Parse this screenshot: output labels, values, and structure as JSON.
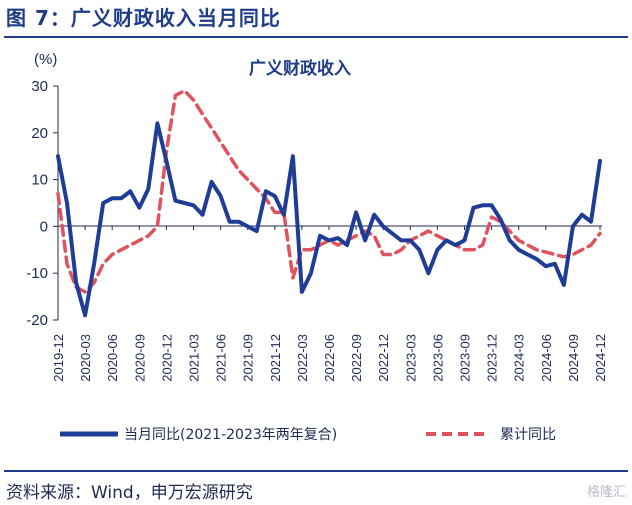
{
  "figure": {
    "title": "图 7：广义财政收入当月同比",
    "source": "资料来源：Wind，申万宏源研究",
    "watermark": "格隆汇"
  },
  "colors": {
    "series_monthly": "#1f3c96",
    "series_cumulative": "#e0525e",
    "text": "#1f2a55",
    "accent": "#1f3c88"
  },
  "chart_data": {
    "type": "line",
    "title": "广义财政收入",
    "unit_label": "(%)",
    "ylim": [
      -20,
      30
    ],
    "yticks": [
      -20,
      -10,
      0,
      10,
      20,
      30
    ],
    "xtick_labels": [
      "2019-12",
      "2020-03",
      "2020-06",
      "2020-09",
      "2020-12",
      "2021-03",
      "2021-06",
      "2021-09",
      "2021-12",
      "2022-03",
      "2022-06",
      "2022-09",
      "2022-12",
      "2023-03",
      "2023-06",
      "2023-09",
      "2023-12",
      "2024-03",
      "2024-06",
      "2024-09",
      "2024-12"
    ],
    "x": [
      "2019-12",
      "2020-01",
      "2020-02",
      "2020-03",
      "2020-04",
      "2020-05",
      "2020-06",
      "2020-07",
      "2020-08",
      "2020-09",
      "2020-10",
      "2020-11",
      "2020-12",
      "2021-01",
      "2021-02",
      "2021-03",
      "2021-04",
      "2021-05",
      "2021-06",
      "2021-07",
      "2021-08",
      "2021-09",
      "2021-10",
      "2021-11",
      "2021-12",
      "2022-01",
      "2022-02",
      "2022-03",
      "2022-04",
      "2022-05",
      "2022-06",
      "2022-07",
      "2022-08",
      "2022-09",
      "2022-10",
      "2022-11",
      "2022-12",
      "2023-01",
      "2023-02",
      "2023-03",
      "2023-04",
      "2023-05",
      "2023-06",
      "2023-07",
      "2023-08",
      "2023-09",
      "2023-10",
      "2023-11",
      "2023-12",
      "2024-01",
      "2024-02",
      "2024-03",
      "2024-04",
      "2024-05",
      "2024-06",
      "2024-07",
      "2024-08",
      "2024-09",
      "2024-10",
      "2024-11",
      "2024-12"
    ],
    "grid": false,
    "legend_position": "bottom",
    "series": [
      {
        "name": "当月同比(2021-2023年两年复合)",
        "style": "solid",
        "values": [
          15,
          5,
          -12,
          -19,
          -8,
          5,
          6,
          6,
          7.5,
          4,
          8,
          22,
          14,
          5.5,
          5,
          4.5,
          2.5,
          9.5,
          6.5,
          1,
          1,
          0,
          -1,
          7.5,
          6.5,
          2.5,
          15,
          -14,
          -10,
          -2,
          -3,
          -2.5,
          -4,
          3,
          -3,
          2.5,
          0,
          -1.5,
          -3,
          -3,
          -5,
          -10,
          -5,
          -3,
          -4,
          -3,
          4,
          4.5,
          4.5,
          1.5,
          -3,
          -5,
          -6,
          -7,
          -8.5,
          -8,
          -12.5,
          0,
          2.5,
          1,
          14
        ]
      },
      {
        "name": "累计同比",
        "style": "dashed",
        "values": [
          7,
          -8,
          -13,
          -14,
          -12,
          -8,
          -6,
          -5,
          -4,
          -3,
          -2,
          0,
          16,
          28,
          29,
          27,
          24,
          21,
          18,
          15,
          12,
          10,
          8,
          6,
          3,
          3,
          -11,
          -5,
          -5,
          -4,
          -3,
          -4,
          -3,
          -2,
          -1,
          -2,
          -6,
          -6,
          -5,
          -3,
          -2,
          -1,
          -2,
          -3,
          -4,
          -5,
          -5,
          -4,
          2,
          1,
          -1,
          -3,
          -4,
          -5,
          -5.5,
          -6,
          -6.5,
          -6,
          -5,
          -4,
          -1.5
        ]
      }
    ]
  }
}
